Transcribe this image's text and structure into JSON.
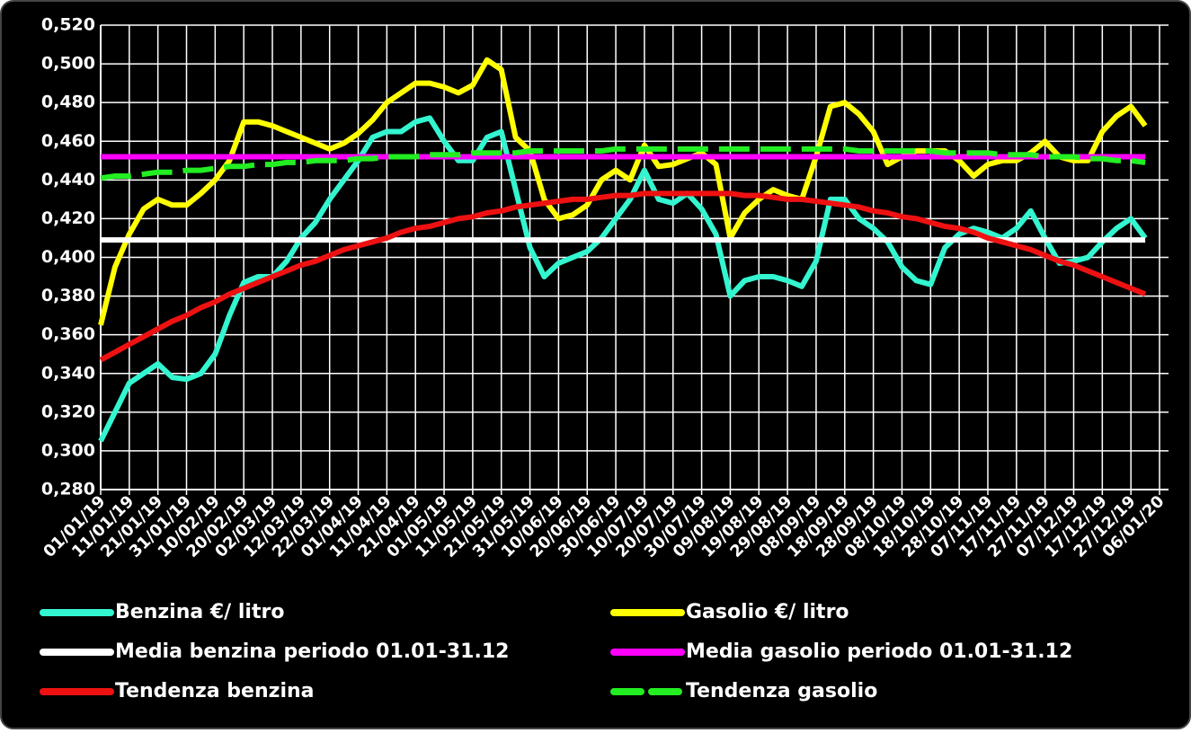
{
  "chart_data": {
    "type": "line",
    "categories": [
      "01/01/19",
      null,
      "11/01/19",
      null,
      "21/01/19",
      null,
      "31/01/19",
      null,
      "10/02/19",
      null,
      "20/02/19",
      null,
      "02/03/19",
      null,
      "12/03/19",
      null,
      "22/03/19",
      null,
      "01/04/19",
      null,
      "11/04/19",
      null,
      "21/04/19",
      null,
      "01/05/19",
      null,
      "11/05/19",
      null,
      "21/05/19",
      null,
      "31/05/19",
      null,
      "10/06/19",
      null,
      "20/06/19",
      null,
      "30/06/19",
      null,
      "10/07/19",
      null,
      "20/07/19",
      null,
      "30/07/19",
      null,
      "09/08/19",
      null,
      "19/08/19",
      null,
      "29/08/19",
      null,
      "08/09/19",
      null,
      "18/09/19",
      null,
      "28/09/19",
      null,
      "08/10/19",
      null,
      "18/10/19",
      null,
      "28/10/19",
      null,
      "07/11/19",
      null,
      "17/11/19",
      null,
      "27/11/19",
      null,
      "07/12/19",
      null,
      "17/12/19",
      null,
      "27/12/19",
      null,
      "06/01/20"
    ],
    "ylim": [
      0.28,
      0.52
    ],
    "yticks": [
      {
        "value": 0.28,
        "label": "0,280"
      },
      {
        "value": 0.3,
        "label": "0,300"
      },
      {
        "value": 0.32,
        "label": "0,320"
      },
      {
        "value": 0.34,
        "label": "0,340"
      },
      {
        "value": 0.36,
        "label": "0,360"
      },
      {
        "value": 0.38,
        "label": "0,380"
      },
      {
        "value": 0.4,
        "label": "0,400"
      },
      {
        "value": 0.42,
        "label": "0,420"
      },
      {
        "value": 0.44,
        "label": "0,440"
      },
      {
        "value": 0.46,
        "label": "0,460"
      },
      {
        "value": 0.48,
        "label": "0,480"
      },
      {
        "value": 0.5,
        "label": "0,500"
      },
      {
        "value": 0.52,
        "label": "0,520"
      }
    ],
    "grid": true,
    "series": [
      {
        "name": "Benzina €/ litro",
        "color": "#33f5d0",
        "values": [
          0.305,
          0.32,
          0.335,
          0.34,
          0.345,
          0.338,
          0.337,
          0.34,
          0.35,
          0.37,
          0.387,
          0.39,
          0.39,
          0.398,
          0.41,
          0.418,
          0.43,
          0.44,
          0.45,
          0.462,
          0.465,
          0.465,
          0.47,
          0.472,
          0.46,
          0.45,
          0.45,
          0.462,
          0.465,
          0.435,
          0.405,
          0.39,
          0.397,
          0.4,
          0.403,
          0.41,
          0.42,
          0.43,
          0.445,
          0.43,
          0.428,
          0.433,
          0.425,
          0.412,
          0.38,
          0.388,
          0.39,
          0.39,
          0.388,
          0.385,
          0.398,
          0.43,
          0.43,
          0.42,
          0.415,
          0.408,
          0.395,
          0.388,
          0.386,
          0.405,
          0.412,
          0.415,
          0.413,
          0.41,
          0.415,
          0.424,
          0.41,
          0.397,
          0.398,
          0.4,
          0.408,
          0.415,
          0.42,
          0.41,
          null
        ]
      },
      {
        "name": "Gasolio €/ litro",
        "color": "#ffff00",
        "values": [
          0.365,
          0.395,
          0.412,
          0.425,
          0.43,
          0.427,
          0.427,
          0.433,
          0.44,
          0.45,
          0.47,
          0.47,
          0.468,
          0.465,
          0.462,
          0.459,
          0.456,
          0.459,
          0.464,
          0.471,
          0.48,
          0.485,
          0.49,
          0.49,
          0.488,
          0.485,
          0.489,
          0.502,
          0.497,
          0.462,
          0.455,
          0.43,
          0.42,
          0.422,
          0.427,
          0.44,
          0.445,
          0.44,
          0.458,
          0.447,
          0.448,
          0.451,
          0.454,
          0.448,
          0.41,
          0.423,
          0.43,
          0.435,
          0.432,
          0.43,
          0.452,
          0.478,
          0.48,
          0.474,
          0.465,
          0.448,
          0.452,
          0.455,
          0.455,
          0.455,
          0.45,
          0.442,
          0.448,
          0.45,
          0.45,
          0.454,
          0.46,
          0.452,
          0.45,
          0.45,
          0.465,
          0.473,
          0.478,
          0.468,
          null
        ]
      },
      {
        "name": "Media benzina periodo 01.01-31.12",
        "color": "#ffffff",
        "values": [
          0.409,
          0.409,
          0.409,
          0.409,
          0.409,
          0.409,
          0.409,
          0.409,
          0.409,
          0.409,
          0.409,
          0.409,
          0.409,
          0.409,
          0.409,
          0.409,
          0.409,
          0.409,
          0.409,
          0.409,
          0.409,
          0.409,
          0.409,
          0.409,
          0.409,
          0.409,
          0.409,
          0.409,
          0.409,
          0.409,
          0.409,
          0.409,
          0.409,
          0.409,
          0.409,
          0.409,
          0.409,
          0.409,
          0.409,
          0.409,
          0.409,
          0.409,
          0.409,
          0.409,
          0.409,
          0.409,
          0.409,
          0.409,
          0.409,
          0.409,
          0.409,
          0.409,
          0.409,
          0.409,
          0.409,
          0.409,
          0.409,
          0.409,
          0.409,
          0.409,
          0.409,
          0.409,
          0.409,
          0.409,
          0.409,
          0.409,
          0.409,
          0.409,
          0.409,
          0.409,
          0.409,
          0.409,
          0.409,
          0.409,
          null
        ]
      },
      {
        "name": "Media gasolio periodo 01.01-31.12",
        "color": "#ff00ff",
        "values": [
          0.452,
          0.452,
          0.452,
          0.452,
          0.452,
          0.452,
          0.452,
          0.452,
          0.452,
          0.452,
          0.452,
          0.452,
          0.452,
          0.452,
          0.452,
          0.452,
          0.452,
          0.452,
          0.452,
          0.452,
          0.452,
          0.452,
          0.452,
          0.452,
          0.452,
          0.452,
          0.452,
          0.452,
          0.452,
          0.452,
          0.452,
          0.452,
          0.452,
          0.452,
          0.452,
          0.452,
          0.452,
          0.452,
          0.452,
          0.452,
          0.452,
          0.452,
          0.452,
          0.452,
          0.452,
          0.452,
          0.452,
          0.452,
          0.452,
          0.452,
          0.452,
          0.452,
          0.452,
          0.452,
          0.452,
          0.452,
          0.452,
          0.452,
          0.452,
          0.452,
          0.452,
          0.452,
          0.452,
          0.452,
          0.452,
          0.452,
          0.452,
          0.452,
          0.452,
          0.452,
          0.452,
          0.452,
          0.452,
          0.452,
          null
        ]
      },
      {
        "name": "Tendenza benzina",
        "color": "#ee1111",
        "values": [
          0.347,
          0.351,
          0.355,
          0.359,
          0.363,
          0.367,
          0.37,
          0.374,
          0.377,
          0.381,
          0.384,
          0.387,
          0.39,
          0.393,
          0.396,
          0.398,
          0.401,
          0.404,
          0.406,
          0.408,
          0.41,
          0.413,
          0.415,
          0.416,
          0.418,
          0.42,
          0.421,
          0.423,
          0.424,
          0.426,
          0.427,
          0.428,
          0.429,
          0.43,
          0.43,
          0.431,
          0.432,
          0.432,
          0.433,
          0.433,
          0.433,
          0.433,
          0.433,
          0.433,
          0.433,
          0.432,
          0.432,
          0.431,
          0.43,
          0.43,
          0.429,
          0.428,
          0.427,
          0.426,
          0.424,
          0.423,
          0.421,
          0.42,
          0.418,
          0.416,
          0.415,
          0.413,
          0.41,
          0.408,
          0.406,
          0.404,
          0.401,
          0.398,
          0.396,
          0.393,
          0.39,
          0.387,
          0.384,
          0.381,
          null
        ]
      },
      {
        "name": "Tendenza gasolio",
        "color": "#22ee22",
        "dashed": true,
        "values": [
          0.441,
          0.442,
          0.442,
          0.443,
          0.444,
          0.444,
          0.445,
          0.445,
          0.446,
          0.447,
          0.447,
          0.448,
          0.448,
          0.449,
          0.449,
          0.45,
          0.45,
          0.45,
          0.451,
          0.451,
          0.452,
          0.452,
          0.452,
          0.453,
          0.453,
          0.453,
          0.454,
          0.454,
          0.454,
          0.454,
          0.455,
          0.455,
          0.455,
          0.455,
          0.455,
          0.455,
          0.456,
          0.456,
          0.456,
          0.456,
          0.456,
          0.456,
          0.456,
          0.456,
          0.456,
          0.456,
          0.456,
          0.456,
          0.456,
          0.456,
          0.456,
          0.456,
          0.456,
          0.455,
          0.455,
          0.455,
          0.455,
          0.455,
          0.455,
          0.454,
          0.454,
          0.454,
          0.454,
          0.453,
          0.453,
          0.453,
          0.452,
          0.452,
          0.452,
          0.451,
          0.451,
          0.45,
          0.45,
          0.449,
          null
        ]
      }
    ]
  }
}
